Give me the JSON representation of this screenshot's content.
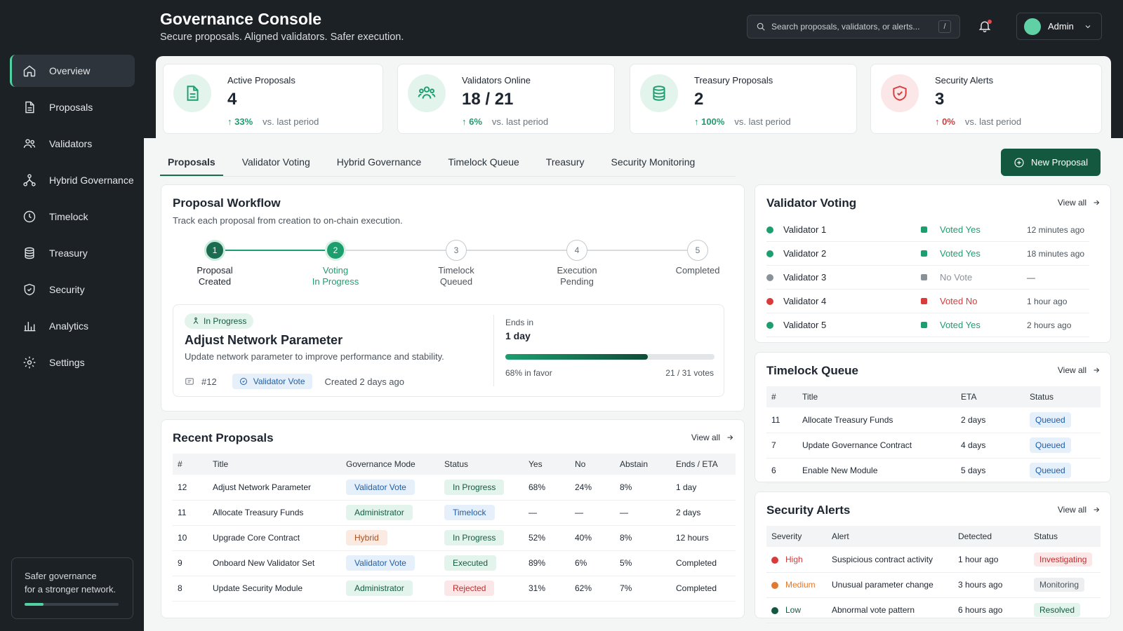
{
  "header": {
    "title": "Governance Console",
    "subtitle": "Secure proposals. Aligned validators. Safer execution.",
    "search_placeholder": "Search proposals, validators, or alerts...",
    "search_shortcut": "/",
    "user": "Admin"
  },
  "sidebar": {
    "items": [
      {
        "label": "Overview",
        "icon": "home-icon"
      },
      {
        "label": "Proposals",
        "icon": "document-icon"
      },
      {
        "label": "Validators",
        "icon": "users-icon"
      },
      {
        "label": "Hybrid Governance",
        "icon": "network-icon"
      },
      {
        "label": "Timelock",
        "icon": "clock-icon"
      },
      {
        "label": "Treasury",
        "icon": "database-icon"
      },
      {
        "label": "Security",
        "icon": "shield-icon"
      },
      {
        "label": "Analytics",
        "icon": "bar-chart-icon"
      },
      {
        "label": "Settings",
        "icon": "gear-icon"
      }
    ],
    "footer_line1": "Safer governance",
    "footer_line2": "for a stronger network.",
    "footer_progress": 0.2
  },
  "stats": [
    {
      "label": "Active Proposals",
      "value": "4",
      "trend": "33%",
      "vs": "vs. last period"
    },
    {
      "label": "Validators Online",
      "value": "18 / 21",
      "trend": "6%",
      "vs": "vs. last period"
    },
    {
      "label": "Treasury Proposals",
      "value": "2",
      "trend": "100%",
      "vs": "vs. last period"
    },
    {
      "label": "Security Alerts",
      "value": "3",
      "trend": "0%",
      "vs": "vs. last period"
    }
  ],
  "tabs": [
    "Proposals",
    "Validator Voting",
    "Hybrid Governance",
    "Timelock Queue",
    "Treasury",
    "Security Monitoring"
  ],
  "new_proposal": "New Proposal",
  "workflow": {
    "title": "Proposal Workflow",
    "subtitle": "Track each proposal from creation to on-chain execution.",
    "steps": [
      {
        "num": "1",
        "line1": "Proposal",
        "line2": "Created"
      },
      {
        "num": "2",
        "line1": "Voting",
        "line2": "In Progress"
      },
      {
        "num": "3",
        "line1": "Timelock",
        "line2": "Queued"
      },
      {
        "num": "4",
        "line1": "Execution",
        "line2": "Pending"
      },
      {
        "num": "5",
        "line1": "Completed",
        "line2": ""
      }
    ],
    "current": {
      "badge": "In Progress",
      "title": "Adjust Network Parameter",
      "description": "Update network parameter to improve performance and stability.",
      "id": "#12",
      "mode": "Validator Vote",
      "created": "Created 2 days ago",
      "ends_label": "Ends in",
      "ends_value": "1 day",
      "favor": "68% in favor",
      "votes": "21 / 31 votes",
      "progress": 0.68
    }
  },
  "recent": {
    "title": "Recent Proposals",
    "view_all": "View all",
    "headers": [
      "#",
      "Title",
      "Governance Mode",
      "Status",
      "Yes",
      "No",
      "Abstain",
      "Ends / ETA"
    ],
    "rows": [
      {
        "id": "12",
        "title": "Adjust Network Parameter",
        "mode": "Validator Vote",
        "status": "In Progress",
        "yes": "68%",
        "no": "24%",
        "abstain": "8%",
        "ends": "1 day"
      },
      {
        "id": "11",
        "title": "Allocate Treasury Funds",
        "mode": "Administrator",
        "status": "Timelock",
        "yes": "—",
        "no": "—",
        "abstain": "—",
        "ends": "2 days"
      },
      {
        "id": "10",
        "title": "Upgrade Core Contract",
        "mode": "Hybrid",
        "status": "In Progress",
        "yes": "52%",
        "no": "40%",
        "abstain": "8%",
        "ends": "12 hours"
      },
      {
        "id": "9",
        "title": "Onboard New Validator Set",
        "mode": "Validator Vote",
        "status": "Executed",
        "yes": "89%",
        "no": "6%",
        "abstain": "5%",
        "ends": "Completed"
      },
      {
        "id": "8",
        "title": "Update Security Module",
        "mode": "Administrator",
        "status": "Rejected",
        "yes": "31%",
        "no": "62%",
        "abstain": "7%",
        "ends": "Completed"
      }
    ]
  },
  "voting": {
    "title": "Validator Voting",
    "view_all": "View all",
    "rows": [
      {
        "name": "Validator 1",
        "vote": "Voted Yes",
        "time": "12 minutes ago",
        "color": "#1d9e6f"
      },
      {
        "name": "Validator 2",
        "vote": "Voted Yes",
        "time": "18 minutes ago",
        "color": "#1d9e6f"
      },
      {
        "name": "Validator 3",
        "vote": "No Vote",
        "time": "—",
        "color": "#8a9299"
      },
      {
        "name": "Validator 4",
        "vote": "Voted No",
        "time": "1 hour ago",
        "color": "#d93b3b"
      },
      {
        "name": "Validator 5",
        "vote": "Voted Yes",
        "time": "2 hours ago",
        "color": "#1d9e6f"
      }
    ]
  },
  "timelock": {
    "title": "Timelock Queue",
    "view_all": "View all",
    "headers": [
      "#",
      "Title",
      "ETA",
      "Status"
    ],
    "rows": [
      {
        "id": "11",
        "title": "Allocate Treasury Funds",
        "eta": "2 days",
        "status": "Queued"
      },
      {
        "id": "7",
        "title": "Update Governance Contract",
        "eta": "4 days",
        "status": "Queued"
      },
      {
        "id": "6",
        "title": "Enable New Module",
        "eta": "5 days",
        "status": "Queued"
      }
    ]
  },
  "alerts": {
    "title": "Security Alerts",
    "view_all": "View all",
    "headers": [
      "Severity",
      "Alert",
      "Detected",
      "Status"
    ],
    "rows": [
      {
        "severity": "High",
        "alert": "Suspicious contract activity",
        "detected": "1 hour ago",
        "status": "Investigating",
        "color": "#d93b3b"
      },
      {
        "severity": "Medium",
        "alert": "Unusual parameter change",
        "detected": "3 hours ago",
        "status": "Monitoring",
        "color": "#e07a2e"
      },
      {
        "severity": "Low",
        "alert": "Abnormal vote pattern",
        "detected": "6 hours ago",
        "status": "Resolved",
        "color": "#13583f"
      }
    ]
  }
}
